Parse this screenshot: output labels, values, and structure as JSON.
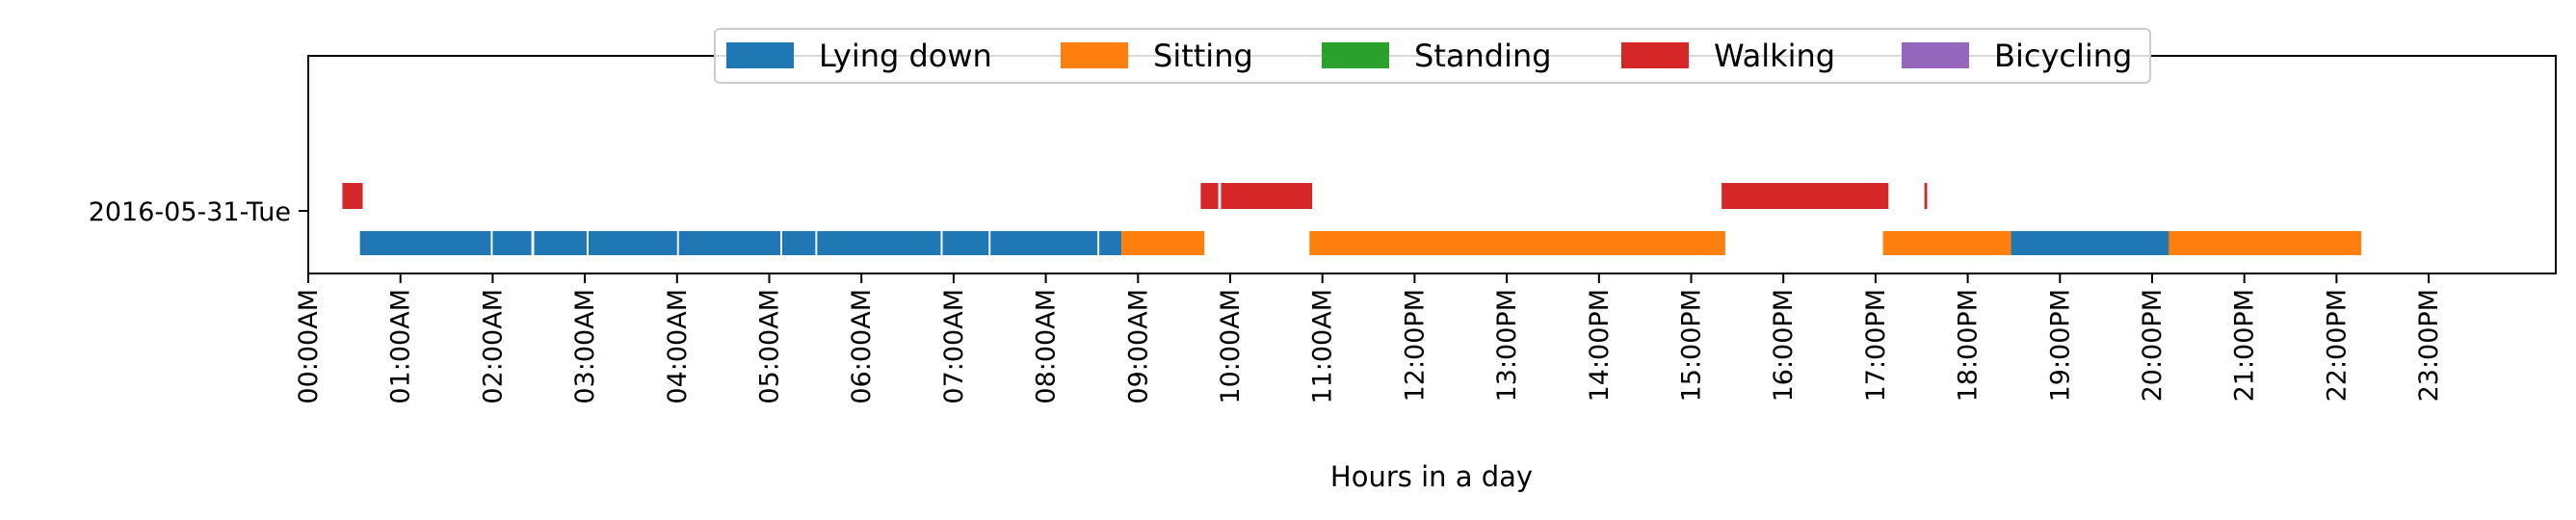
{
  "chart_data": {
    "type": "timeline",
    "xlabel": "Hours in a day",
    "ylabel": "",
    "xlim": [
      0,
      24
    ],
    "x_ticks": [
      {
        "value": 0,
        "label": "00:00AM"
      },
      {
        "value": 1,
        "label": "01:00AM"
      },
      {
        "value": 2,
        "label": "02:00AM"
      },
      {
        "value": 3,
        "label": "03:00AM"
      },
      {
        "value": 4,
        "label": "04:00AM"
      },
      {
        "value": 5,
        "label": "05:00AM"
      },
      {
        "value": 6,
        "label": "06:00AM"
      },
      {
        "value": 7,
        "label": "07:00AM"
      },
      {
        "value": 8,
        "label": "08:00AM"
      },
      {
        "value": 9,
        "label": "09:00AM"
      },
      {
        "value": 10,
        "label": "10:00AM"
      },
      {
        "value": 11,
        "label": "11:00AM"
      },
      {
        "value": 12,
        "label": "12:00PM"
      },
      {
        "value": 13,
        "label": "13:00PM"
      },
      {
        "value": 14,
        "label": "14:00PM"
      },
      {
        "value": 15,
        "label": "15:00PM"
      },
      {
        "value": 16,
        "label": "16:00PM"
      },
      {
        "value": 17,
        "label": "17:00PM"
      },
      {
        "value": 18,
        "label": "18:00PM"
      },
      {
        "value": 19,
        "label": "19:00PM"
      },
      {
        "value": 20,
        "label": "20:00PM"
      },
      {
        "value": 21,
        "label": "21:00PM"
      },
      {
        "value": 22,
        "label": "22:00PM"
      },
      {
        "value": 23,
        "label": "23:00PM"
      }
    ],
    "day": "2016-05-31-Tue",
    "legend_position": "top-center",
    "grid": false,
    "series": [
      {
        "name": "Lying down",
        "color": "#1f77b4",
        "lane": "lower",
        "intervals": [
          [
            0.56,
            1.98
          ],
          [
            2.0,
            2.42
          ],
          [
            2.45,
            3.02
          ],
          [
            3.04,
            4.0
          ],
          [
            4.02,
            5.12
          ],
          [
            5.14,
            5.5
          ],
          [
            5.52,
            6.86
          ],
          [
            6.88,
            7.38
          ],
          [
            7.4,
            8.56
          ],
          [
            8.58,
            8.82
          ],
          [
            18.45,
            20.2
          ]
        ]
      },
      {
        "name": "Sitting",
        "color": "#ff7f0e",
        "lane": "lower",
        "intervals": [
          [
            8.82,
            9.72
          ],
          [
            10.86,
            15.37
          ],
          [
            17.08,
            18.47
          ],
          [
            20.18,
            22.27
          ]
        ]
      },
      {
        "name": "Standing",
        "color": "#2ca02c",
        "lane": "upper",
        "intervals": []
      },
      {
        "name": "Walking",
        "color": "#d62728",
        "lane": "upper",
        "intervals": [
          [
            0.37,
            0.59
          ],
          [
            9.68,
            9.87
          ],
          [
            9.9,
            10.89
          ],
          [
            15.33,
            17.14
          ],
          [
            17.53,
            17.56
          ]
        ]
      },
      {
        "name": "Bicycling",
        "color": "#9467bd",
        "lane": "upper",
        "intervals": []
      }
    ]
  }
}
